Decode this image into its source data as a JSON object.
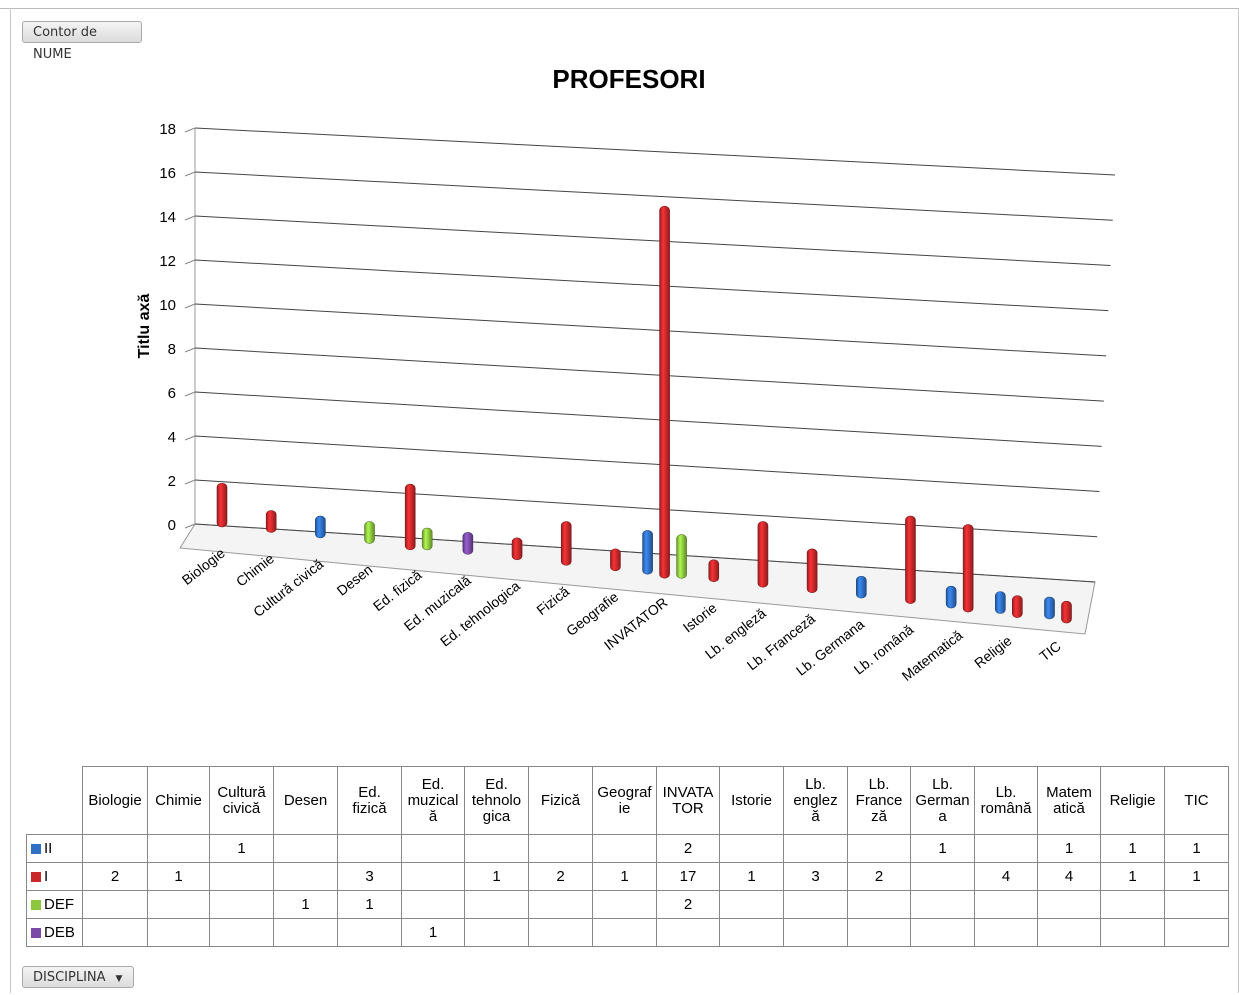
{
  "field_buttons": {
    "counter": "Contor de NUME",
    "discipline": "DISCIPLINA"
  },
  "chart_data": {
    "type": "bar",
    "title": "PROFESORI",
    "ylabel": "Titlu axă",
    "xlabel": "",
    "ylim": [
      0,
      18
    ],
    "yticks": [
      0,
      2,
      4,
      6,
      8,
      10,
      12,
      14,
      16,
      18
    ],
    "categories": [
      "Biologie",
      "Chimie",
      "Cultură civică",
      "Desen",
      "Ed. fizică",
      "Ed. muzicală",
      "Ed. tehnologica",
      "Fizică",
      "Geografie",
      "INVATATOR",
      "Istorie",
      "Lb. engleză",
      "Lb. Franceză",
      "Lb. Germana",
      "Lb. română",
      "Matematică",
      "Religie",
      "TIC"
    ],
    "series": [
      {
        "name": "II",
        "color": "#2f6fc4",
        "values": [
          null,
          null,
          1,
          null,
          null,
          null,
          null,
          null,
          null,
          2,
          null,
          null,
          null,
          1,
          null,
          1,
          1,
          1
        ]
      },
      {
        "name": "I",
        "color": "#c8282a",
        "values": [
          2,
          1,
          null,
          null,
          3,
          null,
          1,
          2,
          1,
          17,
          1,
          3,
          2,
          null,
          4,
          4,
          1,
          1
        ]
      },
      {
        "name": "DEF",
        "color": "#8cc63f",
        "values": [
          null,
          null,
          null,
          1,
          1,
          null,
          null,
          null,
          null,
          2,
          null,
          null,
          null,
          null,
          null,
          null,
          null,
          null
        ]
      },
      {
        "name": "DEB",
        "color": "#7b4aa8",
        "values": [
          null,
          null,
          null,
          null,
          null,
          1,
          null,
          null,
          null,
          null,
          null,
          null,
          null,
          null,
          null,
          null,
          null,
          null
        ]
      }
    ],
    "grid": true,
    "legend": "table"
  },
  "table": {
    "headers": [
      "Biologie",
      "Chimie",
      "Cultură\ncivică",
      "Desen",
      "Ed.\nfizică",
      "Ed.\nmuzical\nă",
      "Ed.\ntehnolo\ngica",
      "Fizică",
      "Geograf\nie",
      "INVATA\nTOR",
      "Istorie",
      "Lb.\nenglez\nă",
      "Lb.\nFrance\nză",
      "Lb.\nGerman\na",
      "Lb.\nromână",
      "Matem\natică",
      "Religie",
      "TIC"
    ]
  }
}
